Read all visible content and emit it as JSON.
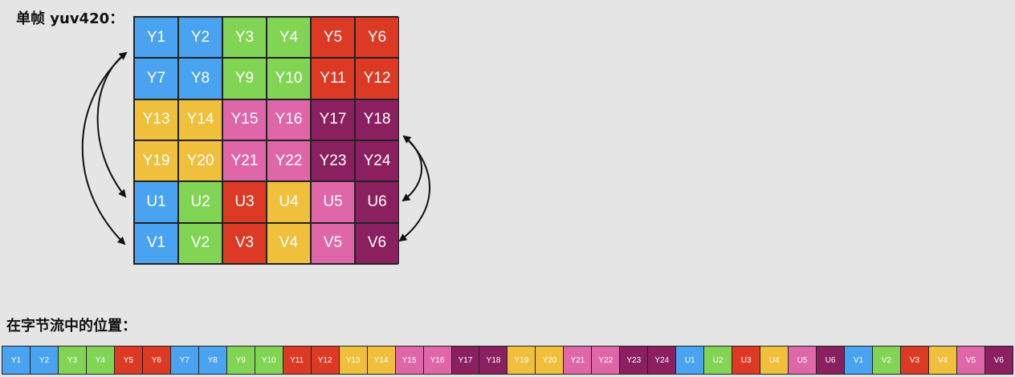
{
  "frame_title": "单帧 yuv420：",
  "stream_title": "在字节流中的位置：",
  "colors": {
    "blue": "#4aa3f0",
    "green": "#82d455",
    "red": "#dd3a25",
    "yellow": "#f0bf3c",
    "pink": "#e066aa",
    "purple": "#8b2060"
  },
  "grid": [
    {
      "label": "Y1",
      "color": "blue"
    },
    {
      "label": "Y2",
      "color": "blue"
    },
    {
      "label": "Y3",
      "color": "green"
    },
    {
      "label": "Y4",
      "color": "green"
    },
    {
      "label": "Y5",
      "color": "red"
    },
    {
      "label": "Y6",
      "color": "red"
    },
    {
      "label": "Y7",
      "color": "blue"
    },
    {
      "label": "Y8",
      "color": "blue"
    },
    {
      "label": "Y9",
      "color": "green"
    },
    {
      "label": "Y10",
      "color": "green"
    },
    {
      "label": "Y11",
      "color": "red"
    },
    {
      "label": "Y12",
      "color": "red"
    },
    {
      "label": "Y13",
      "color": "yellow"
    },
    {
      "label": "Y14",
      "color": "yellow"
    },
    {
      "label": "Y15",
      "color": "pink"
    },
    {
      "label": "Y16",
      "color": "pink"
    },
    {
      "label": "Y17",
      "color": "purple"
    },
    {
      "label": "Y18",
      "color": "purple"
    },
    {
      "label": "Y19",
      "color": "yellow"
    },
    {
      "label": "Y20",
      "color": "yellow"
    },
    {
      "label": "Y21",
      "color": "pink"
    },
    {
      "label": "Y22",
      "color": "pink"
    },
    {
      "label": "Y23",
      "color": "purple"
    },
    {
      "label": "Y24",
      "color": "purple"
    },
    {
      "label": "U1",
      "color": "blue"
    },
    {
      "label": "U2",
      "color": "green"
    },
    {
      "label": "U3",
      "color": "red"
    },
    {
      "label": "U4",
      "color": "yellow"
    },
    {
      "label": "U5",
      "color": "pink"
    },
    {
      "label": "U6",
      "color": "purple"
    },
    {
      "label": "V1",
      "color": "blue"
    },
    {
      "label": "V2",
      "color": "green"
    },
    {
      "label": "V3",
      "color": "red"
    },
    {
      "label": "V4",
      "color": "yellow"
    },
    {
      "label": "V5",
      "color": "pink"
    },
    {
      "label": "V6",
      "color": "purple"
    }
  ],
  "stream": [
    {
      "label": "Y1",
      "color": "blue"
    },
    {
      "label": "Y2",
      "color": "blue"
    },
    {
      "label": "Y3",
      "color": "green"
    },
    {
      "label": "Y4",
      "color": "green"
    },
    {
      "label": "Y5",
      "color": "red"
    },
    {
      "label": "Y6",
      "color": "red"
    },
    {
      "label": "Y7",
      "color": "blue"
    },
    {
      "label": "Y8",
      "color": "blue"
    },
    {
      "label": "Y9",
      "color": "green"
    },
    {
      "label": "Y10",
      "color": "green"
    },
    {
      "label": "Y11",
      "color": "red"
    },
    {
      "label": "Y12",
      "color": "red"
    },
    {
      "label": "Y13",
      "color": "yellow"
    },
    {
      "label": "Y14",
      "color": "yellow"
    },
    {
      "label": "Y15",
      "color": "pink"
    },
    {
      "label": "Y16",
      "color": "pink"
    },
    {
      "label": "Y17",
      "color": "purple"
    },
    {
      "label": "Y18",
      "color": "purple"
    },
    {
      "label": "Y19",
      "color": "yellow"
    },
    {
      "label": "Y20",
      "color": "yellow"
    },
    {
      "label": "Y21",
      "color": "pink"
    },
    {
      "label": "Y22",
      "color": "pink"
    },
    {
      "label": "Y23",
      "color": "purple"
    },
    {
      "label": "Y24",
      "color": "purple"
    },
    {
      "label": "U1",
      "color": "blue"
    },
    {
      "label": "U2",
      "color": "green"
    },
    {
      "label": "U3",
      "color": "red"
    },
    {
      "label": "U4",
      "color": "yellow"
    },
    {
      "label": "U5",
      "color": "pink"
    },
    {
      "label": "U6",
      "color": "purple"
    },
    {
      "label": "V1",
      "color": "blue"
    },
    {
      "label": "V2",
      "color": "green"
    },
    {
      "label": "V3",
      "color": "red"
    },
    {
      "label": "V4",
      "color": "yellow"
    },
    {
      "label": "V5",
      "color": "pink"
    },
    {
      "label": "V6",
      "color": "purple"
    }
  ]
}
